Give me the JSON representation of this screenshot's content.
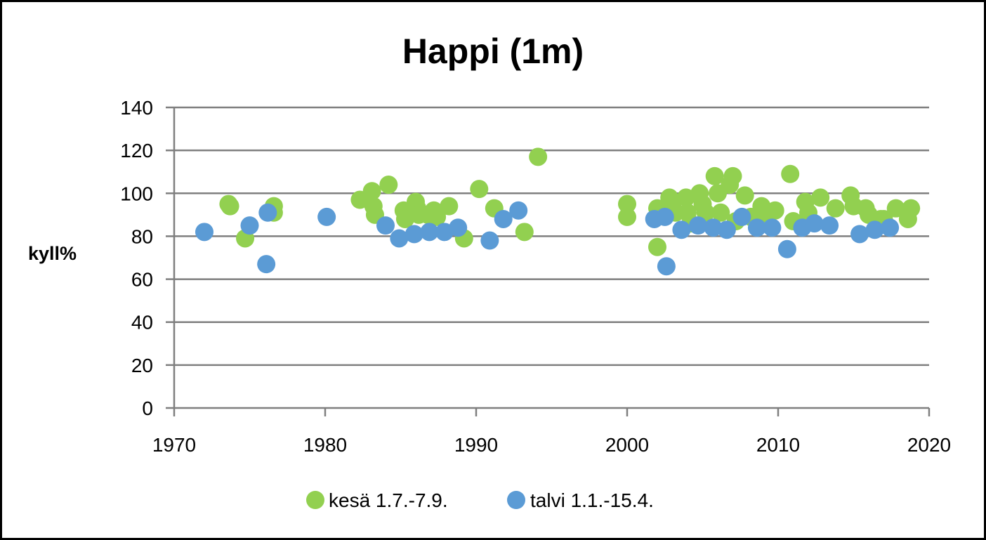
{
  "chart_data": {
    "type": "scatter",
    "title": "Happi (1m)",
    "xlabel": "",
    "ylabel": "kyll%",
    "xlim": [
      1970,
      2020
    ],
    "ylim": [
      0,
      140
    ],
    "xticks": [
      "1970",
      "1980",
      "1990",
      "2000",
      "2010",
      "2020"
    ],
    "yticks": [
      "0",
      "20",
      "40",
      "60",
      "80",
      "100",
      "120",
      "140"
    ],
    "grid": "horizontal",
    "legend_position": "bottom",
    "series": [
      {
        "name": "kesä 1.7.-7.9.",
        "color": "#92d050",
        "points": [
          [
            1973.6,
            95
          ],
          [
            1973.7,
            94
          ],
          [
            1974.7,
            79
          ],
          [
            1976.6,
            94
          ],
          [
            1976.6,
            91
          ],
          [
            1982.3,
            97
          ],
          [
            1983.1,
            101
          ],
          [
            1983.2,
            94
          ],
          [
            1983.3,
            90
          ],
          [
            1984.2,
            104
          ],
          [
            1985.2,
            92
          ],
          [
            1985.3,
            88
          ],
          [
            1986.0,
            96
          ],
          [
            1986.1,
            93
          ],
          [
            1986.2,
            90
          ],
          [
            1986.8,
            90
          ],
          [
            1987.2,
            92
          ],
          [
            1987.4,
            89
          ],
          [
            1988.2,
            94
          ],
          [
            1989.2,
            79
          ],
          [
            1990.2,
            102
          ],
          [
            1991.2,
            93
          ],
          [
            1993.2,
            82
          ],
          [
            1994.1,
            117
          ],
          [
            2000.0,
            95
          ],
          [
            2000.0,
            89
          ],
          [
            2002.0,
            93
          ],
          [
            2002.0,
            75
          ],
          [
            2002.8,
            98
          ],
          [
            2003.0,
            95
          ],
          [
            2003.2,
            91
          ],
          [
            2003.9,
            98
          ],
          [
            2004.0,
            91
          ],
          [
            2004.2,
            86
          ],
          [
            2004.8,
            100
          ],
          [
            2005.0,
            95
          ],
          [
            2005.2,
            91
          ],
          [
            2005.8,
            108
          ],
          [
            2006.0,
            100
          ],
          [
            2006.2,
            91
          ],
          [
            2006.8,
            104
          ],
          [
            2007.0,
            108
          ],
          [
            2007.2,
            87
          ],
          [
            2007.8,
            99
          ],
          [
            2008.2,
            89
          ],
          [
            2008.9,
            94
          ],
          [
            2009.2,
            89
          ],
          [
            2009.8,
            92
          ],
          [
            2010.8,
            109
          ],
          [
            2011.0,
            87
          ],
          [
            2011.8,
            96
          ],
          [
            2012.0,
            91
          ],
          [
            2012.8,
            98
          ],
          [
            2013.8,
            93
          ],
          [
            2014.8,
            99
          ],
          [
            2015.0,
            94
          ],
          [
            2015.8,
            93
          ],
          [
            2016.0,
            90
          ],
          [
            2016.8,
            88
          ],
          [
            2017.0,
            88
          ],
          [
            2017.8,
            93
          ],
          [
            2018.6,
            88
          ],
          [
            2018.8,
            93
          ]
        ]
      },
      {
        "name": "talvi 1.1.-15.4.",
        "color": "#5b9bd5",
        "points": [
          [
            1972.0,
            82
          ],
          [
            1975.0,
            85
          ],
          [
            1976.1,
            67
          ],
          [
            1976.2,
            91
          ],
          [
            1980.1,
            89
          ],
          [
            1984.0,
            85
          ],
          [
            1984.9,
            79
          ],
          [
            1985.9,
            81
          ],
          [
            1986.9,
            82
          ],
          [
            1987.9,
            82
          ],
          [
            1988.8,
            84
          ],
          [
            1990.9,
            78
          ],
          [
            1991.8,
            88
          ],
          [
            1992.8,
            92
          ],
          [
            2001.8,
            88
          ],
          [
            2002.5,
            89
          ],
          [
            2002.6,
            66
          ],
          [
            2003.6,
            83
          ],
          [
            2004.7,
            85
          ],
          [
            2005.7,
            84
          ],
          [
            2006.6,
            83
          ],
          [
            2007.6,
            89
          ],
          [
            2008.6,
            84
          ],
          [
            2009.6,
            84
          ],
          [
            2010.6,
            74
          ],
          [
            2011.6,
            84
          ],
          [
            2012.4,
            86
          ],
          [
            2013.4,
            85
          ],
          [
            2015.4,
            81
          ],
          [
            2016.4,
            83
          ],
          [
            2017.4,
            84
          ]
        ]
      }
    ]
  }
}
